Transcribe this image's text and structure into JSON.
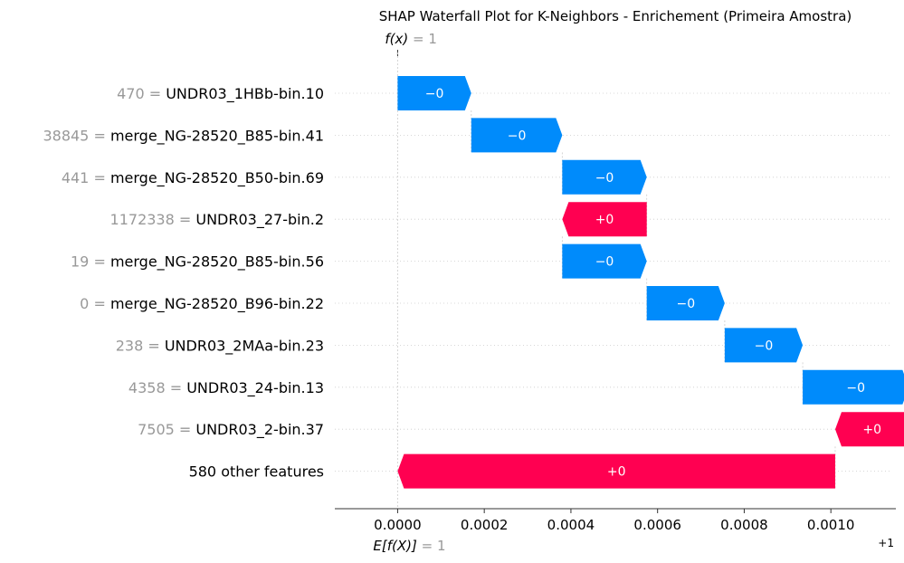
{
  "chart_data": {
    "type": "waterfall",
    "title": "SHAP Waterfall Plot for K-Neighbors - Enrichement (Primeira Amostra)",
    "fx_label": {
      "name": "f(x)",
      "value": "= 1"
    },
    "efx_label": {
      "name": "E[f(X)]",
      "value": "= 1"
    },
    "offset_label": "+1",
    "xlim": [
      -0.000145,
      0.00115
    ],
    "base_value": 0.0,
    "ticks": [
      {
        "value": 0.0,
        "label": "0.0000"
      },
      {
        "value": 0.0002,
        "label": "0.0002"
      },
      {
        "value": 0.0004,
        "label": "0.0004"
      },
      {
        "value": 0.0006,
        "label": "0.0006"
      },
      {
        "value": 0.0008,
        "label": "0.0008"
      },
      {
        "value": 0.001,
        "label": "0.0010"
      }
    ],
    "features": [
      {
        "value": "470",
        "name": "UNDR03_1HBb-bin.10",
        "start": 0.0,
        "end": 0.00017,
        "label": "−0"
      },
      {
        "value": "38845",
        "name": "merge_NG-28520_B85-bin.41",
        "start": 0.00017,
        "end": 0.00038,
        "label": "−0"
      },
      {
        "value": "441",
        "name": "merge_NG-28520_B50-bin.69",
        "start": 0.00038,
        "end": 0.000575,
        "label": "−0"
      },
      {
        "value": "1172338",
        "name": "UNDR03_27-bin.2",
        "start": 0.000575,
        "end": 0.00038,
        "label": "+0"
      },
      {
        "value": "19",
        "name": "merge_NG-28520_B85-bin.56",
        "start": 0.00038,
        "end": 0.000575,
        "label": "−0"
      },
      {
        "value": "0",
        "name": "merge_NG-28520_B96-bin.22",
        "start": 0.000575,
        "end": 0.000755,
        "label": "−0"
      },
      {
        "value": "238",
        "name": "UNDR03_2MAa-bin.23",
        "start": 0.000755,
        "end": 0.000935,
        "label": "−0"
      },
      {
        "value": "4358",
        "name": "UNDR03_24-bin.13",
        "start": 0.000935,
        "end": 0.00118,
        "label": "−0"
      },
      {
        "value": "7505",
        "name": "UNDR03_2-bin.37",
        "start": 0.00118,
        "end": 0.00101,
        "label": "+0"
      },
      {
        "value": "",
        "name": "580 other features",
        "start": 0.00101,
        "end": 0.0,
        "label": "+0"
      }
    ],
    "colors": {
      "positive": "#ff0051",
      "negative": "#008bfb",
      "value_text": "#999999",
      "name_text": "#000000",
      "grid": "#cccccc",
      "axis": "#333333"
    }
  }
}
